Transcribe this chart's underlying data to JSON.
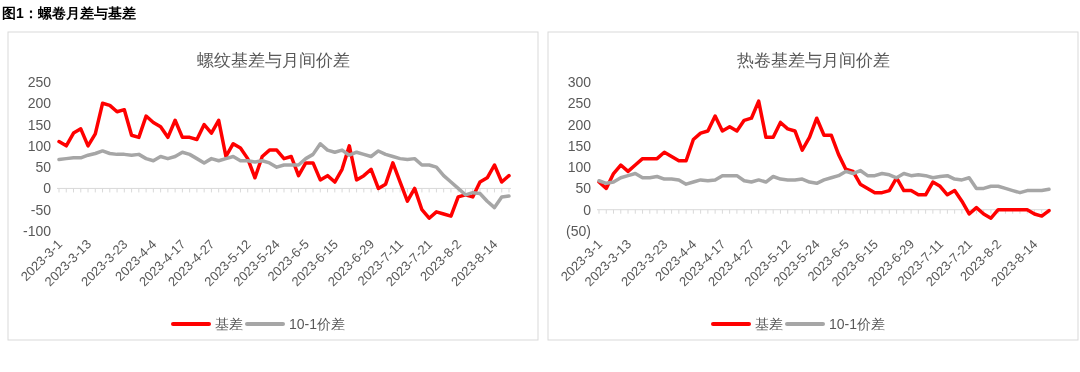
{
  "chart_data": [
    {
      "type": "line",
      "title": "螺纹基差与月间价差",
      "annotations": [
        "图1：螺卷月差与基差"
      ],
      "categories": [
        "2023-3-1",
        null,
        null,
        null,
        "2023-3-13",
        null,
        null,
        null,
        null,
        "2023-3-23",
        null,
        null,
        null,
        "2023-4-4",
        null,
        null,
        null,
        "2023-4-17",
        null,
        null,
        null,
        "2023-4-27",
        null,
        null,
        null,
        null,
        "2023-5-12",
        null,
        null,
        null,
        "2023-5-24",
        null,
        null,
        null,
        "2023-6-5",
        null,
        null,
        null,
        "2023-6-15",
        null,
        null,
        null,
        null,
        "2023-6-29",
        null,
        null,
        null,
        "2023-7-11",
        null,
        null,
        null,
        "2023-7-21",
        null,
        null,
        null,
        "2023-8-2",
        null,
        null,
        null,
        null,
        "2023-8-14",
        null,
        null
      ],
      "ylim": [
        -100,
        250
      ],
      "yticks": [
        -100,
        -50,
        0,
        50,
        100,
        150,
        200,
        250
      ],
      "legend": "bottom",
      "series": [
        {
          "name": "基差",
          "color": "#ff0000",
          "values": [
            110,
            100,
            130,
            140,
            100,
            128,
            200,
            195,
            180,
            185,
            125,
            120,
            170,
            155,
            145,
            120,
            160,
            120,
            120,
            115,
            150,
            130,
            160,
            75,
            105,
            95,
            70,
            25,
            75,
            90,
            90,
            70,
            75,
            30,
            60,
            60,
            20,
            30,
            15,
            45,
            100,
            20,
            30,
            45,
            0,
            10,
            60,
            15,
            -30,
            0,
            -50,
            -70,
            -55,
            -60,
            -65,
            -20,
            -15,
            -20,
            15,
            25,
            55,
            15,
            30
          ]
        },
        {
          "name": "10-1价差",
          "color": "#a6a6a6",
          "values": [
            68,
            70,
            72,
            72,
            78,
            82,
            88,
            82,
            80,
            80,
            78,
            80,
            70,
            65,
            75,
            70,
            75,
            85,
            80,
            70,
            60,
            70,
            65,
            70,
            75,
            65,
            65,
            62,
            65,
            60,
            50,
            55,
            55,
            55,
            70,
            80,
            105,
            90,
            85,
            90,
            78,
            85,
            80,
            75,
            88,
            80,
            75,
            70,
            68,
            70,
            55,
            55,
            50,
            30,
            15,
            0,
            -15,
            -10,
            -12,
            -30,
            -45,
            -20,
            -18
          ]
        }
      ]
    },
    {
      "type": "line",
      "title": "热卷基差与月间价差",
      "categories": [
        "2023-3-1",
        null,
        null,
        null,
        "2023-3-13",
        null,
        null,
        null,
        null,
        "2023-3-23",
        null,
        null,
        null,
        "2023-4-4",
        null,
        null,
        null,
        "2023-4-17",
        null,
        null,
        null,
        "2023-4-27",
        null,
        null,
        null,
        null,
        "2023-5-12",
        null,
        null,
        null,
        "2023-5-24",
        null,
        null,
        null,
        "2023-6-5",
        null,
        null,
        null,
        "2023-6-15",
        null,
        null,
        null,
        null,
        "2023-6-29",
        null,
        null,
        null,
        "2023-7-11",
        null,
        null,
        null,
        "2023-7-21",
        null,
        null,
        null,
        "2023-8-2",
        null,
        null,
        null,
        null,
        "2023-8-14",
        null,
        null
      ],
      "ylim": [
        -50,
        300
      ],
      "yticks": [
        {
          "value": -50,
          "label": "(50)"
        },
        0,
        50,
        100,
        150,
        200,
        250,
        300
      ],
      "legend": "bottom",
      "series": [
        {
          "name": "基差",
          "color": "#ff0000",
          "values": [
            65,
            50,
            85,
            105,
            90,
            105,
            120,
            120,
            120,
            135,
            125,
            115,
            115,
            165,
            180,
            185,
            220,
            185,
            195,
            185,
            210,
            215,
            255,
            170,
            170,
            205,
            190,
            185,
            140,
            170,
            215,
            175,
            175,
            130,
            95,
            90,
            60,
            50,
            40,
            40,
            45,
            75,
            45,
            45,
            35,
            35,
            65,
            55,
            35,
            45,
            20,
            -10,
            5,
            -10,
            -20,
            0,
            0,
            0,
            0,
            0,
            -10,
            -15,
            -2
          ]
        },
        {
          "name": "10-1价差",
          "color": "#a6a6a6",
          "values": [
            68,
            62,
            65,
            75,
            80,
            85,
            75,
            75,
            78,
            72,
            72,
            70,
            60,
            65,
            70,
            68,
            70,
            80,
            80,
            80,
            68,
            65,
            70,
            65,
            78,
            72,
            70,
            70,
            72,
            65,
            62,
            70,
            75,
            80,
            90,
            85,
            92,
            80,
            80,
            85,
            82,
            75,
            85,
            80,
            82,
            80,
            75,
            78,
            80,
            72,
            70,
            75,
            50,
            50,
            55,
            55,
            50,
            45,
            40,
            45,
            45,
            45,
            48
          ]
        }
      ]
    }
  ]
}
